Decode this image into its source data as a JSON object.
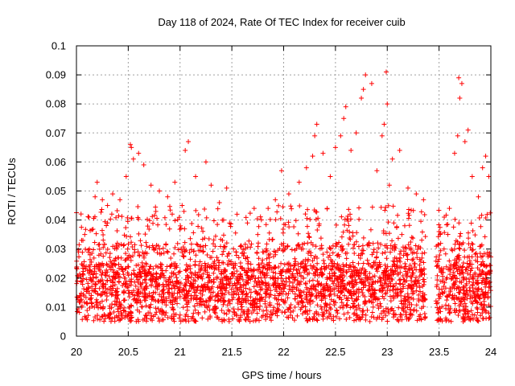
{
  "chart_data": {
    "type": "scatter",
    "title": "Day 118 of 2024, Rate Of TEC Index for receiver cuib",
    "xlabel": "GPS time / hours",
    "ylabel": "ROTI / TECUs",
    "xlim": [
      20,
      24
    ],
    "ylim": [
      0,
      0.1
    ],
    "xticks": [
      20,
      20.5,
      21,
      21.5,
      22,
      22.5,
      23,
      23.5,
      24
    ],
    "xtick_labels": [
      "20",
      "20.5",
      "21",
      "21.5",
      "22",
      "22.5",
      "23",
      "23.5",
      "24"
    ],
    "yticks": [
      0,
      0.01,
      0.02,
      0.03,
      0.04,
      0.05,
      0.06,
      0.07,
      0.08,
      0.09,
      0.1
    ],
    "ytick_labels": [
      "0",
      "0.01",
      "0.02",
      "0.03",
      "0.04",
      "0.05",
      "0.06",
      "0.07",
      "0.08",
      "0.09",
      "0.1"
    ],
    "grid": true,
    "marker": "+",
    "color": "#ff0000",
    "data_gap": [
      23.37,
      23.47
    ],
    "series": [
      {
        "name": "ROTI",
        "values": [
          [
            20.02,
            0.029
          ],
          [
            20.05,
            0.033
          ],
          [
            20.08,
            0.035
          ],
          [
            20.12,
            0.041
          ],
          [
            20.18,
            0.048
          ],
          [
            20.2,
            0.053
          ],
          [
            20.25,
            0.047
          ],
          [
            20.3,
            0.039
          ],
          [
            20.35,
            0.049
          ],
          [
            20.42,
            0.047
          ],
          [
            20.48,
            0.055
          ],
          [
            20.52,
            0.066
          ],
          [
            20.53,
            0.065
          ],
          [
            20.55,
            0.061
          ],
          [
            20.6,
            0.063
          ],
          [
            20.65,
            0.059
          ],
          [
            20.72,
            0.052
          ],
          [
            20.8,
            0.05
          ],
          [
            20.88,
            0.048
          ],
          [
            20.95,
            0.053
          ],
          [
            21.05,
            0.064
          ],
          [
            21.08,
            0.067
          ],
          [
            21.15,
            0.055
          ],
          [
            21.25,
            0.06
          ],
          [
            21.3,
            0.052
          ],
          [
            21.38,
            0.046
          ],
          [
            21.45,
            0.051
          ],
          [
            21.55,
            0.042
          ],
          [
            21.65,
            0.039
          ],
          [
            21.75,
            0.035
          ],
          [
            21.85,
            0.044
          ],
          [
            21.92,
            0.047
          ],
          [
            21.98,
            0.057
          ],
          [
            22.05,
            0.049
          ],
          [
            22.15,
            0.053
          ],
          [
            22.22,
            0.058
          ],
          [
            22.28,
            0.062
          ],
          [
            22.3,
            0.069
          ],
          [
            22.32,
            0.073
          ],
          [
            22.38,
            0.063
          ],
          [
            22.45,
            0.055
          ],
          [
            22.5,
            0.065
          ],
          [
            22.55,
            0.069
          ],
          [
            22.58,
            0.075
          ],
          [
            22.6,
            0.079
          ],
          [
            22.65,
            0.064
          ],
          [
            22.7,
            0.07
          ],
          [
            22.75,
            0.082
          ],
          [
            22.77,
            0.085
          ],
          [
            22.79,
            0.09
          ],
          [
            22.85,
            0.087
          ],
          [
            22.9,
            0.057
          ],
          [
            22.95,
            0.069
          ],
          [
            22.97,
            0.073
          ],
          [
            22.99,
            0.091
          ],
          [
            23.0,
            0.08
          ],
          [
            23.05,
            0.061
          ],
          [
            23.12,
            0.064
          ],
          [
            23.2,
            0.051
          ],
          [
            23.28,
            0.049
          ],
          [
            23.35,
            0.047
          ],
          [
            23.5,
            0.036
          ],
          [
            23.55,
            0.041
          ],
          [
            23.6,
            0.044
          ],
          [
            23.65,
            0.063
          ],
          [
            23.68,
            0.069
          ],
          [
            23.7,
            0.082
          ],
          [
            23.72,
            0.087
          ],
          [
            23.69,
            0.089
          ],
          [
            23.75,
            0.067
          ],
          [
            23.78,
            0.071
          ],
          [
            23.82,
            0.055
          ],
          [
            23.88,
            0.048
          ],
          [
            23.92,
            0.058
          ],
          [
            23.95,
            0.062
          ],
          [
            23.98,
            0.055
          ],
          [
            22.42,
            0.044
          ],
          [
            21.02,
            0.045
          ],
          [
            20.3,
            0.045
          ],
          [
            23.02,
            0.052
          ]
        ]
      }
    ]
  }
}
